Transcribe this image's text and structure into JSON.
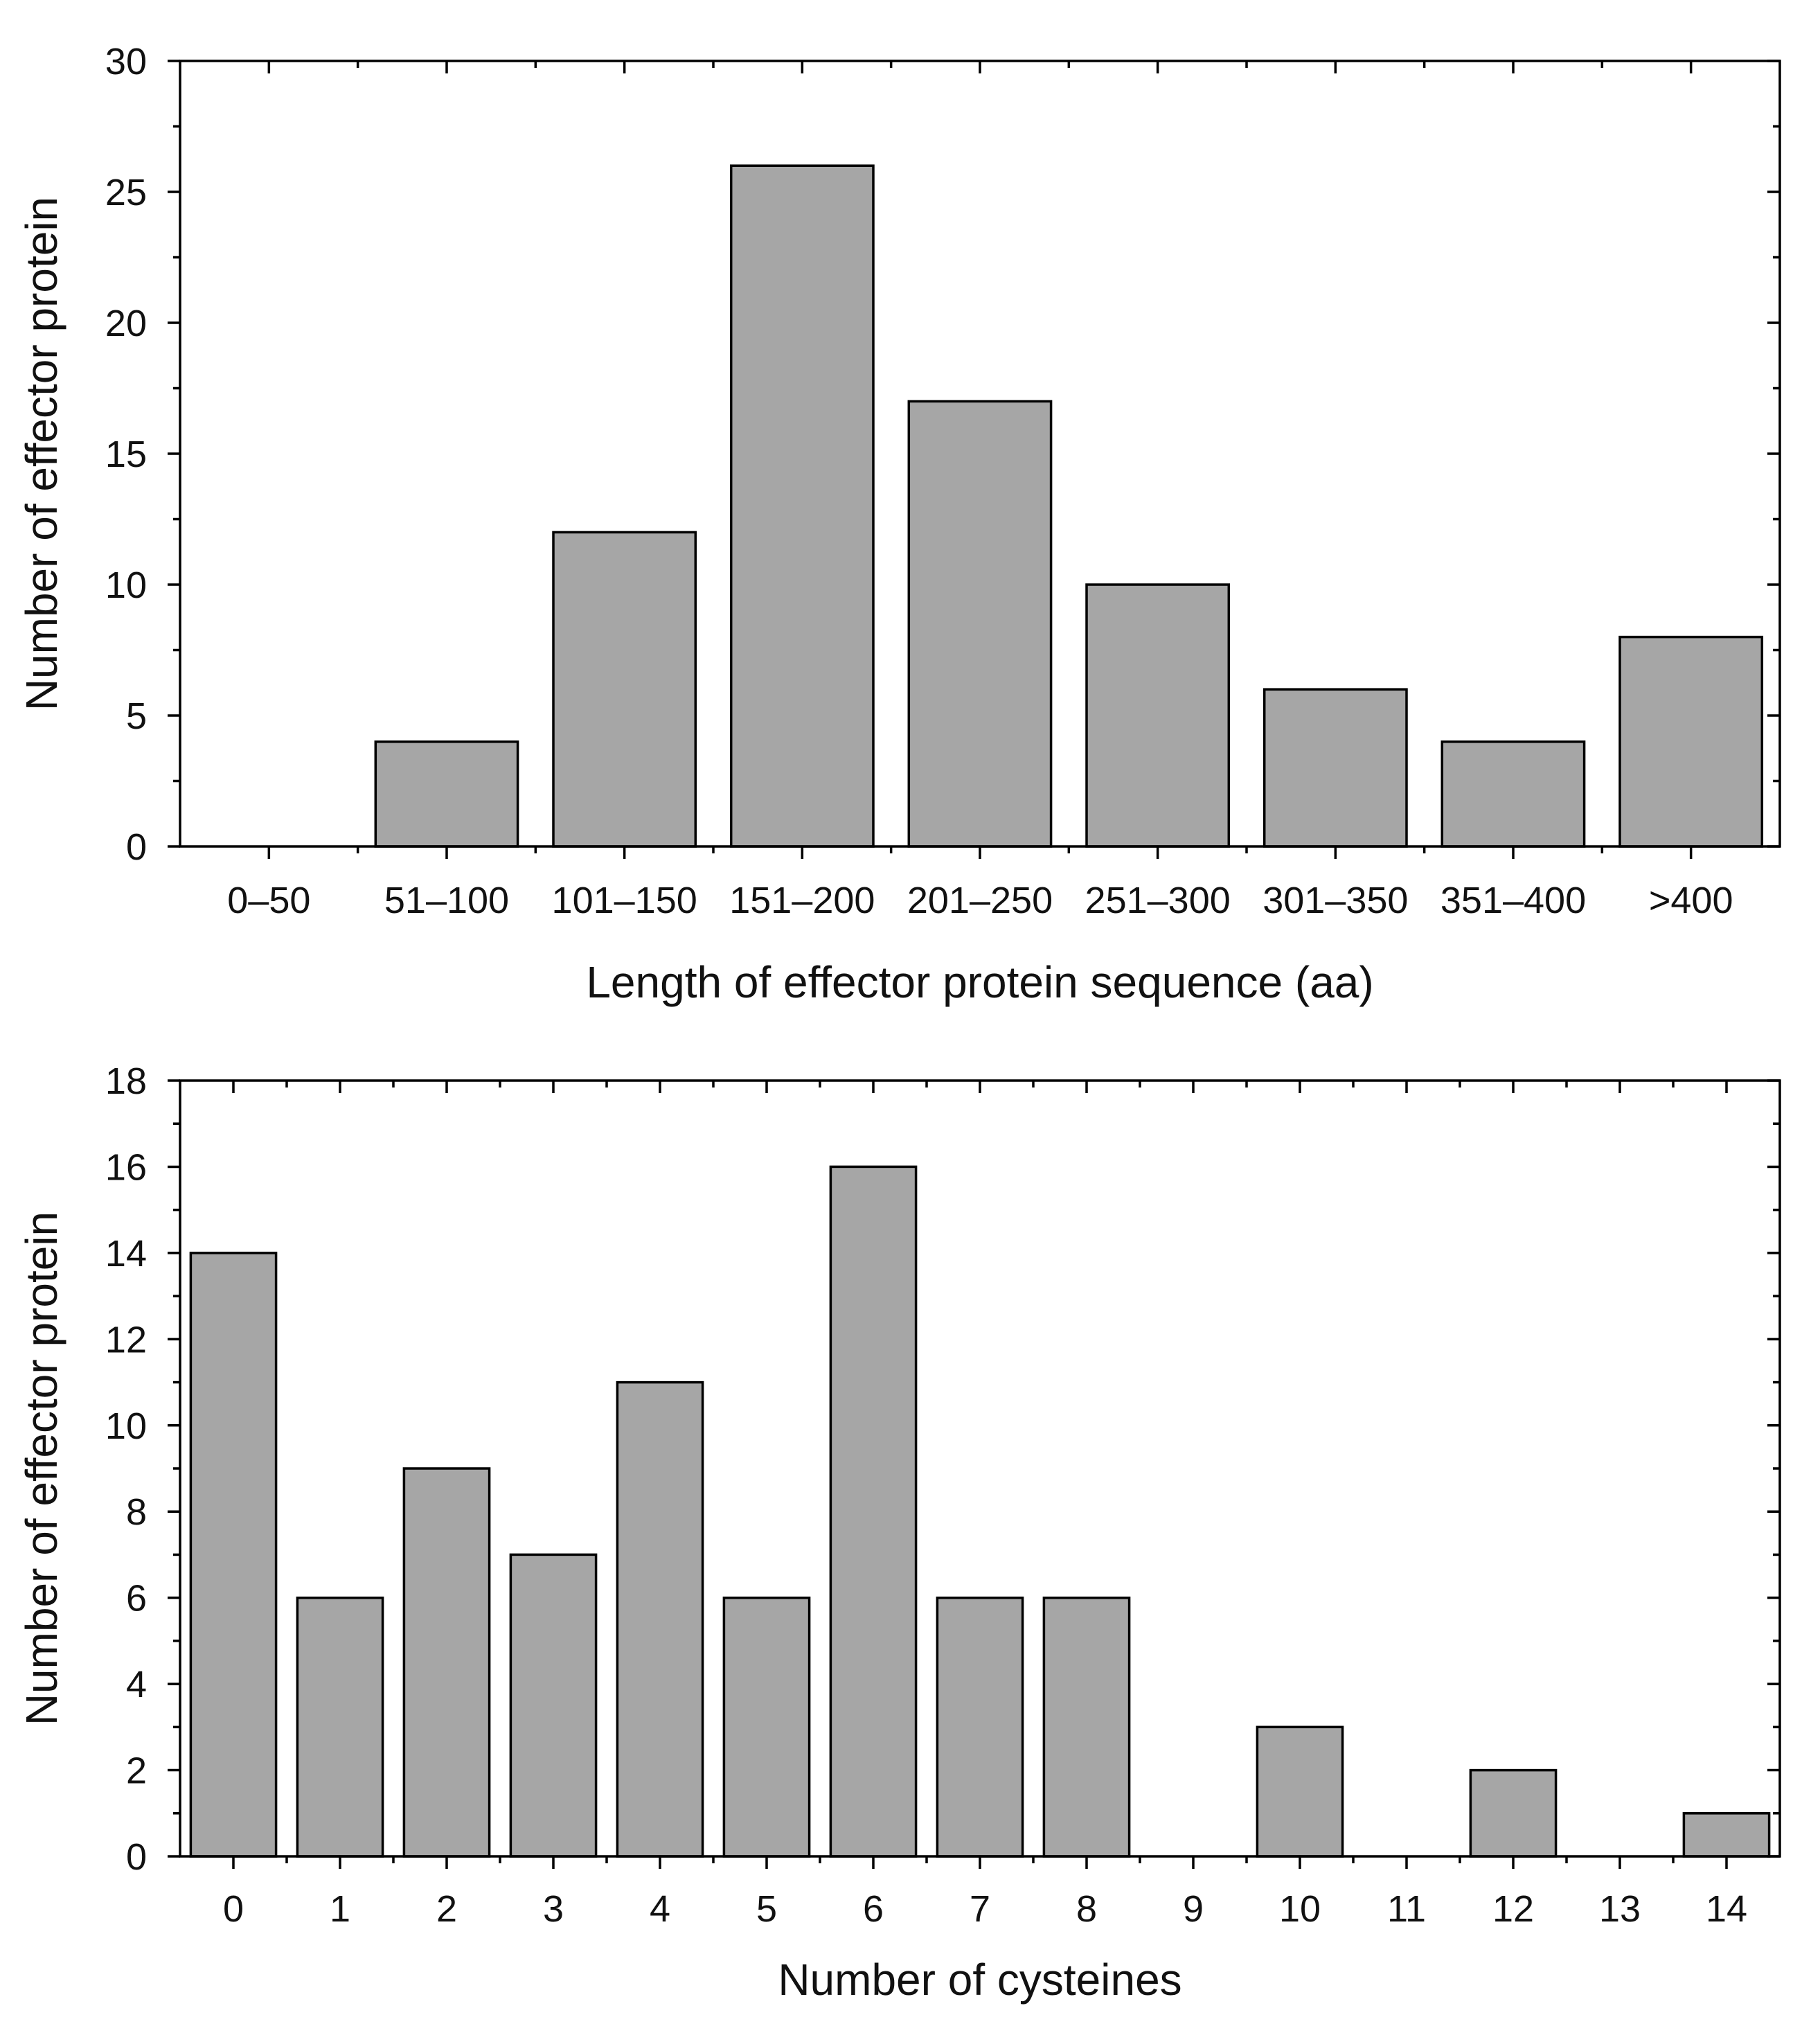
{
  "chart_data": [
    {
      "type": "bar",
      "title": "",
      "xlabel": "Length of effector protein sequence (aa)",
      "ylabel": "Number of effector protein",
      "categories": [
        "0–50",
        "51–100",
        "101–150",
        "151–200",
        "201–250",
        "251–300",
        "301–350",
        "351–400",
        ">400"
      ],
      "values": [
        0,
        4,
        12,
        26,
        17,
        10,
        6,
        4,
        8
      ],
      "ylim": [
        0,
        30
      ],
      "yticks": [
        0,
        5,
        10,
        15,
        20,
        25,
        30
      ],
      "bar_color": "#a6a6a6",
      "grid": false,
      "legend": "none"
    },
    {
      "type": "bar",
      "title": "",
      "xlabel": "Number of cysteines",
      "ylabel": "Number of effector protein",
      "categories": [
        "0",
        "1",
        "2",
        "3",
        "4",
        "5",
        "6",
        "7",
        "8",
        "9",
        "10",
        "11",
        "12",
        "13",
        "14"
      ],
      "values": [
        14,
        6,
        9,
        7,
        11,
        6,
        16,
        6,
        6,
        0,
        3,
        0,
        2,
        0,
        1
      ],
      "ylim": [
        0,
        18
      ],
      "yticks": [
        0,
        2,
        4,
        6,
        8,
        10,
        12,
        14,
        16,
        18
      ],
      "bar_color": "#a6a6a6",
      "grid": false,
      "legend": "none"
    }
  ]
}
